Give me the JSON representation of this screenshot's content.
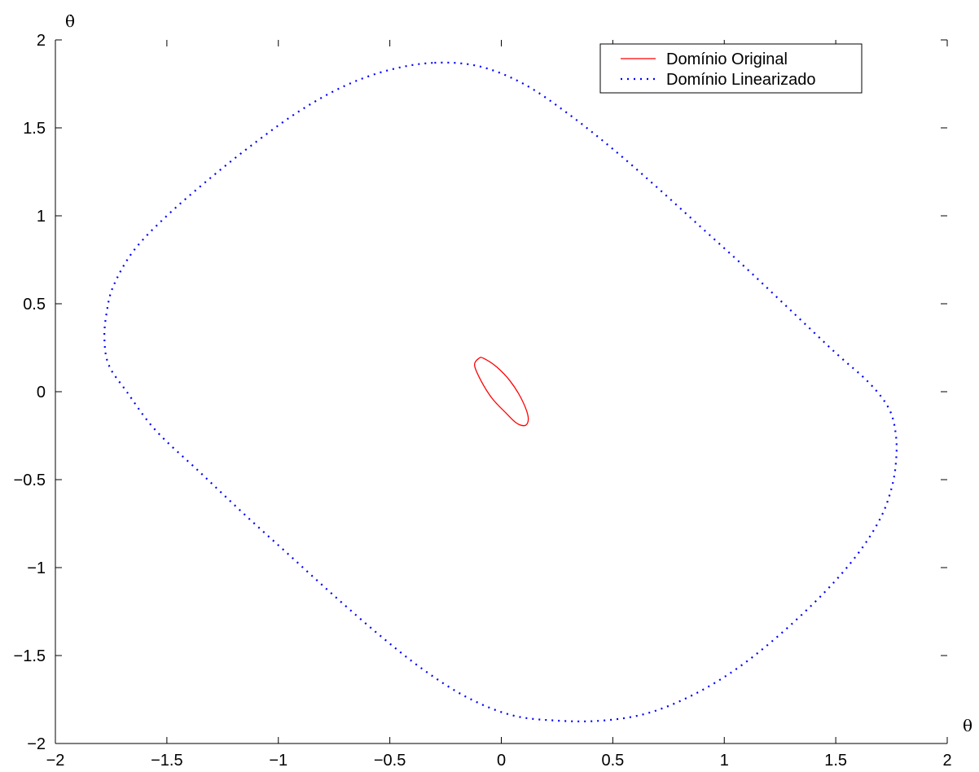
{
  "chart_data": {
    "type": "line",
    "xlabel": "θ",
    "ylabel": "θ̇",
    "xlim": [
      -2,
      2
    ],
    "ylim": [
      -2,
      2
    ],
    "x_ticks": [
      -2,
      -1.5,
      -1,
      -0.5,
      0,
      0.5,
      1,
      1.5,
      2
    ],
    "y_ticks": [
      -2,
      -1.5,
      -1,
      -0.5,
      0,
      0.5,
      1,
      1.5,
      2
    ],
    "x_tick_labels": [
      "−2",
      "−1.5",
      "−1",
      "−0.5",
      "0",
      "0.5",
      "1",
      "1.5",
      "2"
    ],
    "y_tick_labels": [
      "−2",
      "−1.5",
      "−1",
      "−0.5",
      "0",
      "0.5",
      "1",
      "1.5",
      "2"
    ],
    "grid": false,
    "legend_position": "top-right",
    "legend": [
      "Domínio Original",
      "Domínio Linearizado"
    ],
    "series": [
      {
        "name": "Domínio Original",
        "color": "#ff0000",
        "style": "solid",
        "x": [
          -0.1,
          -0.08,
          -0.02,
          0.04,
          0.09,
          0.12,
          0.11,
          0.07,
          0.02,
          -0.04,
          -0.09,
          -0.12,
          -0.1
        ],
        "y": [
          0.19,
          0.19,
          0.14,
          0.06,
          -0.04,
          -0.14,
          -0.19,
          -0.18,
          -0.12,
          -0.04,
          0.06,
          0.15,
          0.19
        ]
      },
      {
        "name": "Domínio Linearizado",
        "color": "#0000ff",
        "style": "dotted",
        "x": [
          -0.3,
          -0.1,
          0.1,
          0.3,
          0.5,
          0.7,
          0.9,
          1.1,
          1.3,
          1.5,
          1.65,
          1.74,
          1.77,
          1.77,
          1.75,
          1.7,
          1.6,
          1.45,
          1.25,
          1.05,
          0.85,
          0.65,
          0.45,
          0.25,
          0.05,
          -0.15,
          -0.35,
          -0.55,
          -0.75,
          -0.95,
          -1.15,
          -1.35,
          -1.55,
          -1.68,
          -1.76,
          -1.78,
          -1.77,
          -1.74,
          -1.65,
          -1.5,
          -1.3,
          -1.1,
          -0.9,
          -0.7,
          -0.5,
          -0.3
        ],
        "y": [
          1.87,
          1.85,
          1.75,
          1.58,
          1.38,
          1.16,
          0.93,
          0.7,
          0.46,
          0.22,
          0.05,
          -0.1,
          -0.25,
          -0.4,
          -0.55,
          -0.72,
          -0.92,
          -1.14,
          -1.38,
          -1.58,
          -1.73,
          -1.83,
          -1.87,
          -1.87,
          -1.84,
          -1.74,
          -1.58,
          -1.38,
          -1.16,
          -0.93,
          -0.7,
          -0.46,
          -0.22,
          0.0,
          0.15,
          0.3,
          0.45,
          0.6,
          0.8,
          1.0,
          1.22,
          1.42,
          1.6,
          1.74,
          1.83,
          1.87
        ]
      }
    ]
  }
}
